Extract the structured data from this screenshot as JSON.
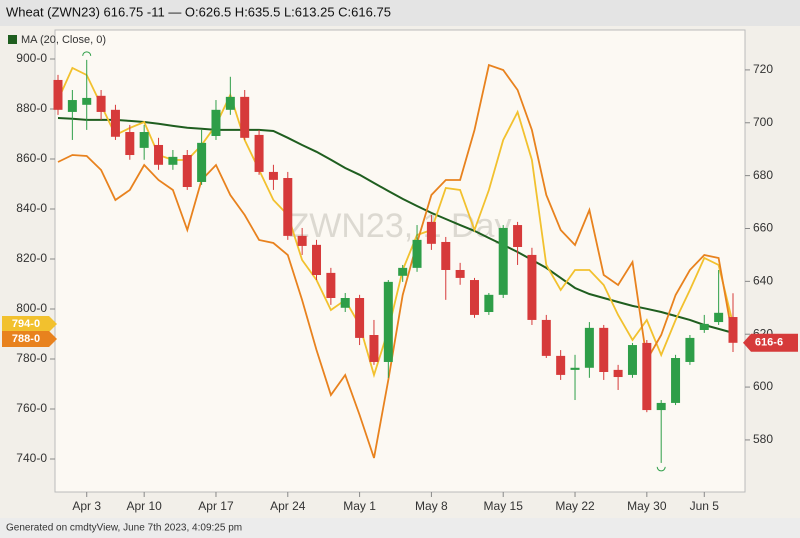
{
  "chart_data": {
    "type": "candlestick",
    "title": "Wheat (ZWN23) 616.75 -11 — O:626.5 H:635.5 L:613.25 C:616.75",
    "watermark": "ZWN23, 1 Day",
    "footer": "Generated on cmdtyView, June 7th 2023, 4:09:25 pm",
    "categories": [
      null,
      null,
      "Apr 3",
      null,
      null,
      null,
      "Apr 10",
      null,
      null,
      null,
      null,
      "Apr 17",
      null,
      null,
      null,
      null,
      "Apr 24",
      null,
      null,
      null,
      null,
      "May 1",
      null,
      null,
      null,
      null,
      "May 8",
      null,
      null,
      null,
      null,
      "May 15",
      null,
      null,
      null,
      null,
      "May 22",
      null,
      null,
      null,
      null,
      "May 30",
      null,
      null,
      null,
      "Jun 5",
      null,
      null
    ],
    "open": [
      716.2,
      704.1,
      706.8,
      710.2,
      704.9,
      696.5,
      690.5,
      691.6,
      684.1,
      687.8,
      677.6,
      695.0,
      704.9,
      709.8,
      695.4,
      681.4,
      679.1,
      657.2,
      653.8,
      643.2,
      630.0,
      633.7,
      619.7,
      609.5,
      642.1,
      645.1,
      662.5,
      654.9,
      644.3,
      640.5,
      628.4,
      634.9,
      661.3,
      650.0,
      625.4,
      611.8,
      606.5,
      607.3,
      622.4,
      606.5,
      604.6,
      616.7,
      591.3,
      594.0,
      609.5,
      621.6,
      624.6,
      626.5
    ],
    "high": [
      718.1,
      712.4,
      723.8,
      712.4,
      706.8,
      699.2,
      699.2,
      694.3,
      689.7,
      689.7,
      697.3,
      708.6,
      717.4,
      712.4,
      697.3,
      684.1,
      681.4,
      660.2,
      655.7,
      645.1,
      635.6,
      634.9,
      625.4,
      640.5,
      646.2,
      661.3,
      665.1,
      656.8,
      647.0,
      641.3,
      635.6,
      661.3,
      662.5,
      652.7,
      627.3,
      614.0,
      612.2,
      624.6,
      623.5,
      608.4,
      616.7,
      617.8,
      595.1,
      612.2,
      619.7,
      627.3,
      644.3,
      635.5
    ],
    "low": [
      703.0,
      693.5,
      697.3,
      701.1,
      693.5,
      686.0,
      686.0,
      682.2,
      682.2,
      674.6,
      676.5,
      693.5,
      703.0,
      693.5,
      680.3,
      674.6,
      655.7,
      650.0,
      640.5,
      631.1,
      628.4,
      615.9,
      608.4,
      603.5,
      639.8,
      643.6,
      651.9,
      633.0,
      638.7,
      626.2,
      627.3,
      633.7,
      646.2,
      623.5,
      611.0,
      602.7,
      595.1,
      603.5,
      602.7,
      598.9,
      603.5,
      590.5,
      571.3,
      593.2,
      608.4,
      620.5,
      623.5,
      613.25
    ],
    "close": [
      704.9,
      708.6,
      709.4,
      704.1,
      694.7,
      687.8,
      696.5,
      684.1,
      687.1,
      675.7,
      692.4,
      704.9,
      709.8,
      694.3,
      681.4,
      678.4,
      657.2,
      653.4,
      642.4,
      633.7,
      633.7,
      618.6,
      609.5,
      639.8,
      645.1,
      655.7,
      654.2,
      644.3,
      641.3,
      627.3,
      634.9,
      660.2,
      653.0,
      625.4,
      611.8,
      604.6,
      607.3,
      622.4,
      605.7,
      603.8,
      615.9,
      591.3,
      594.0,
      611.0,
      618.6,
      623.9,
      628.1,
      616.75
    ],
    "close_label": "616-6",
    "up_color": "#2e9e48",
    "down_color": "#d63a3a",
    "y_axis_position": "right",
    "ylim": [
      560.3,
      735.1
    ],
    "yticks": [
      580,
      600,
      620,
      640,
      660,
      680,
      700,
      720
    ],
    "y2lim": [
      726.8,
      911.6
    ],
    "y2ticks": [
      {
        "value": 740,
        "label": "740-0"
      },
      {
        "value": 760,
        "label": "760-0"
      },
      {
        "value": 780,
        "label": "780-0"
      },
      {
        "value": 800,
        "label": "800-0"
      },
      {
        "value": 820,
        "label": "820-0"
      },
      {
        "value": 840,
        "label": "840-0"
      },
      {
        "value": 860,
        "label": "860-0"
      },
      {
        "value": 880,
        "label": "880-0"
      },
      {
        "value": 900,
        "label": "900-0"
      }
    ],
    "series": [
      {
        "name": "MA (20, Close, 0)",
        "color": "#1f5e1f",
        "axis": "y",
        "values": [
          701.8,
          701.5,
          701.1,
          701.1,
          701.1,
          700.7,
          700.3,
          699.6,
          698.8,
          698.1,
          697.7,
          697.3,
          697.3,
          697.3,
          697.3,
          696.9,
          694.3,
          691.6,
          689.0,
          686.0,
          682.9,
          680.3,
          677.2,
          674.2,
          671.2,
          668.5,
          665.9,
          663.6,
          661.3,
          659.1,
          656.4,
          653.8,
          651.1,
          648.1,
          645.1,
          641.3,
          637.5,
          635.2,
          633.7,
          632.2,
          630.7,
          629.6,
          628.4,
          626.9,
          625.4,
          623.5,
          622.0,
          620.5
        ]
      },
      {
        "color": "#f2c12e",
        "axis": "y2",
        "value_label": "794-0",
        "values": [
          883.6,
          896.4,
          893.6,
          881.6,
          869.6,
          872.4,
          874.8,
          861.6,
          859.6,
          859.6,
          865.6,
          873.6,
          885.6,
          867.6,
          855.6,
          843.6,
          837.6,
          819.6,
          811.6,
          799.6,
          803.6,
          793.6,
          773.6,
          791.6,
          815.6,
          829.6,
          831.6,
          848.4,
          847.6,
          831.6,
          847.6,
          867.6,
          878.8,
          859.6,
          817.6,
          807.6,
          815.6,
          815.6,
          809.6,
          797.6,
          787.6,
          795.6,
          781.6,
          795.6,
          807.6,
          820.4,
          817.6,
          794
        ]
      },
      {
        "color": "#e8821e",
        "axis": "y2",
        "value_label": "788-0",
        "values": [
          858.8,
          861.6,
          861.2,
          855.6,
          843.6,
          847.6,
          857.6,
          851.6,
          847.6,
          831.6,
          851.6,
          857.6,
          845.6,
          837.6,
          827.6,
          826.4,
          821.6,
          803.6,
          783.6,
          765.6,
          773.6,
          757.6,
          740.4,
          771.6,
          805.6,
          826.4,
          845.6,
          851.6,
          851.6,
          871.6,
          897.6,
          895.6,
          887.6,
          871.6,
          845.6,
          831.6,
          825.6,
          839.6,
          813.6,
          809.6,
          818.8,
          779.6,
          789.6,
          805.6,
          815.6,
          821.6,
          820.4,
          788
        ]
      }
    ],
    "grid": false
  }
}
